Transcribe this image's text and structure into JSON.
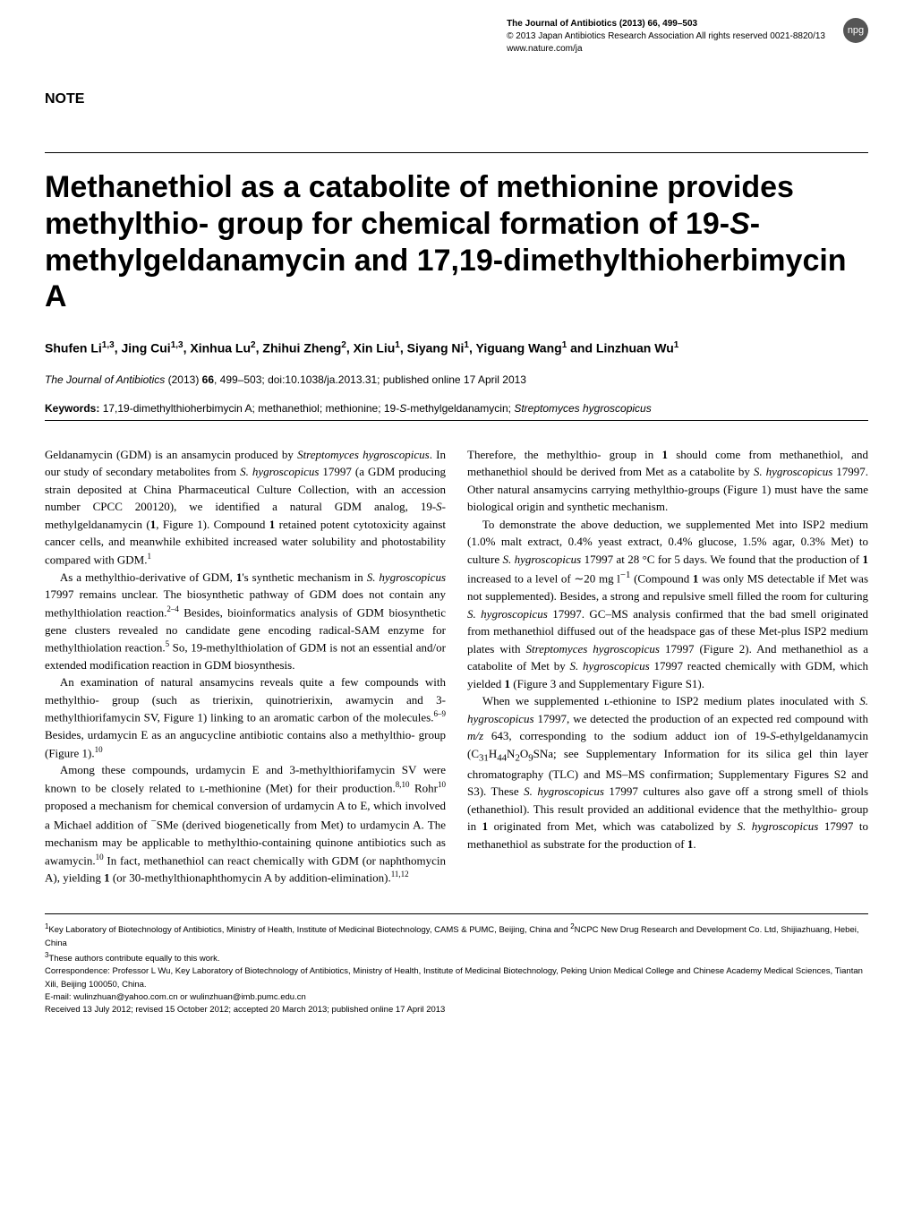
{
  "header": {
    "journal_line": "The Journal of Antibiotics (2013) 66, 499–503",
    "copyright_line": "© 2013 Japan Antibiotics Research Association  All rights reserved 0021-8820/13",
    "url": "www.nature.com/ja",
    "badge": "npg"
  },
  "article_type": "NOTE",
  "title_html": "Methanethiol as a catabolite of methionine provides methylthio- group for chemical formation of 19-<span class=\"italic\">S</span>-methylgeldanamycin and 17,19-dimethylthioherbimycin A",
  "authors_html": "Shufen Li<sup>1,3</sup>, Jing Cui<sup>1,3</sup>, Xinhua Lu<sup>2</sup>, Zhihui Zheng<sup>2</sup>, Xin Liu<sup>1</sup>, Siyang Ni<sup>1</sup>, Yiguang Wang<sup>1</sup> and Linzhuan Wu<sup>1</sup>",
  "citation_html": "<span class=\"italic\">The Journal of Antibiotics</span> (2013) <b>66</b>, 499–503; doi:10.1038/ja.2013.31; published online 17 April 2013",
  "keywords": {
    "label": "Keywords:",
    "text_html": "17,19-dimethylthioherbimycin A; methanethiol; methionine; 19-<span class=\"italic\">S</span>-methylgeldanamycin; <span class=\"italic\">Streptomyces hygroscopicus</span>"
  },
  "left_col": [
    "Geldanamycin (GDM) is an ansamycin produced by <span class=\"italic\">Streptomyces hygroscopicus</span>. In our study of secondary metabolites from <span class=\"italic\">S. hygroscopicus</span> 17997 (a GDM producing strain deposited at China Pharmaceutical Culture Collection, with an accession number CPCC 200120), we identified a natural GDM analog, 19-<span class=\"italic\">S</span>-methylgeldanamycin (<b>1</b>, Figure 1). Compound <b>1</b> retained potent cytotoxicity against cancer cells, and meanwhile exhibited increased water solubility and photostability compared with GDM.<sup class=\"ref\">1</sup>",
    "As a methylthio-derivative of GDM, <b>1</b>'s synthetic mechanism in <span class=\"italic\">S. hygroscopicus</span> 17997 remains unclear. The biosynthetic pathway of GDM does not contain any methylthiolation reaction.<sup class=\"ref\">2–4</sup> Besides, bioinformatics analysis of GDM biosynthetic gene clusters revealed no candidate gene encoding radical-SAM enzyme for methylthiolation reaction.<sup class=\"ref\">5</sup> So, 19-methylthiolation of GDM is not an essential and/or extended modification reaction in GDM biosynthesis.",
    "An examination of natural ansamycins reveals quite a few compounds with methylthio- group (such as trierixin, quinotrierixin, awamycin and 3-methylthiorifamycin SV, Figure 1) linking to an aromatic carbon of the molecules.<sup class=\"ref\">6–9</sup> Besides, urdamycin E as an angucycline antibiotic contains also a methylthio- group (Figure 1).<sup class=\"ref\">10</sup>",
    "Among these compounds, urdamycin E and 3-methylthiorifamycin SV were known to be closely related to ʟ-methionine (Met) for their production.<sup class=\"ref\">8,10</sup> Rohr<sup class=\"ref\">10</sup> proposed a mechanism for chemical conversion of urdamycin A to E, which involved a Michael addition of <sup>−</sup>SMe (derived biogenetically from Met) to urdamycin A. The mechanism may be applicable to methylthio-containing quinone antibiotics such as awamycin.<sup class=\"ref\">10</sup> In fact, methanethiol can react chemically with GDM (or naphthomycin A), yielding <b>1</b> (or 30-methylthionaphthomycin A by addition-elimination).<sup class=\"ref\">11,12</sup>"
  ],
  "right_col": [
    "Therefore, the methylthio- group in <b>1</b> should come from methanethiol, and methanethiol should be derived from Met as a catabolite by <span class=\"italic\">S. hygroscopicus</span> 17997. Other natural ansamycins carrying methylthio-groups (Figure 1) must have the same biological origin and synthetic mechanism.",
    "To demonstrate the above deduction, we supplemented Met into ISP2 medium (1.0% malt extract, 0.4% yeast extract, 0.4% glucose, 1.5% agar, 0.3% Met) to culture <span class=\"italic\">S. hygroscopicus</span> 17997 at 28 °C for 5 days. We found that the production of <b>1</b> increased to a level of ∼20 mg l<sup>−1</sup> (Compound <b>1</b> was only MS detectable if Met was not supplemented). Besides, a strong and repulsive smell filled the room for culturing <span class=\"italic\">S. hygroscopicus</span> 17997. GC–MS analysis confirmed that the bad smell originated from methanethiol diffused out of the headspace gas of these Met-plus ISP2 medium plates with <span class=\"italic\">Streptomyces hygroscopicus</span> 17997 (Figure 2). And methanethiol as a catabolite of Met by <span class=\"italic\">S. hygroscopicus</span> 17997 reacted chemically with GDM, which yielded <b>1</b> (Figure 3 and Supplementary Figure S1).",
    "When we supplemented ʟ-ethionine to ISP2 medium plates inoculated with <span class=\"italic\">S. hygroscopicus</span> 17997, we detected the production of an expected red compound with <span class=\"italic\">m/z</span> 643, corresponding to the sodium adduct ion of 19-<span class=\"italic\">S</span>-ethylgeldanamycin (C<sub>31</sub>H<sub>44</sub>N<sub>2</sub>O<sub>9</sub>SNa; see Supplementary Information for its silica gel thin layer chromatography (TLC) and MS–MS confirmation; Supplementary Figures S2 and S3). These <span class=\"italic\">S. hygroscopicus</span> 17997 cultures also gave off a strong smell of thiols (ethanethiol). This result provided an additional evidence that the methylthio- group in <b>1</b> originated from Met, which was catabolized by <span class=\"italic\">S. hygroscopicus</span> 17997 to methanethiol as substrate for the production of <b>1</b>."
  ],
  "footer": {
    "affil1_html": "<sup>1</sup>Key Laboratory of Biotechnology of Antibiotics, Ministry of Health, Institute of Medicinal Biotechnology, CAMS & PUMC, Beijing, China and <sup>2</sup>NCPC New Drug Research and Development Co. Ltd, Shijiazhuang, Hebei, China",
    "affil_note_html": "<sup>3</sup>These authors contribute equally to this work.",
    "correspondence": "Correspondence: Professor L Wu, Key Laboratory of Biotechnology of Antibiotics, Ministry of Health, Institute of Medicinal Biotechnology, Peking Union Medical College and Chinese Academy Medical Sciences, Tiantan Xili, Beijing 100050, China.",
    "email": "E-mail: wulinzhuan@yahoo.com.cn or wulinzhuan@imb.pumc.edu.cn",
    "received": "Received 13 July 2012; revised 15 October 2012; accepted 20 March 2013; published online 17 April 2013"
  }
}
